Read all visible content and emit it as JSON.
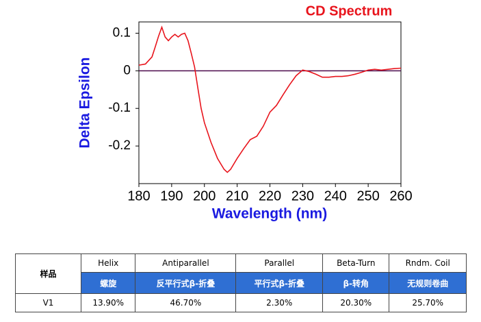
{
  "chart_data": {
    "type": "line",
    "title": "CD Spectrum",
    "x_label": "Wavelength (nm)",
    "y_label": "Delta Epsilon",
    "x": [
      180,
      182,
      184,
      185,
      186,
      187,
      188,
      189,
      190,
      191,
      192,
      193,
      194,
      195,
      196,
      197,
      198,
      199,
      200,
      202,
      204,
      206,
      207,
      208,
      210,
      212,
      214,
      216,
      218,
      220,
      222,
      224,
      226,
      228,
      230,
      232,
      234,
      236,
      238,
      240,
      242,
      244,
      246,
      248,
      250,
      252,
      254,
      256,
      258,
      260
    ],
    "values": [
      0.015,
      0.018,
      0.037,
      0.064,
      0.092,
      0.116,
      0.09,
      0.08,
      0.09,
      0.097,
      0.09,
      0.097,
      0.1,
      0.08,
      0.046,
      0.01,
      -0.046,
      -0.1,
      -0.138,
      -0.19,
      -0.233,
      -0.262,
      -0.27,
      -0.262,
      -0.233,
      -0.207,
      -0.183,
      -0.174,
      -0.147,
      -0.11,
      -0.092,
      -0.064,
      -0.037,
      -0.013,
      0.002,
      -0.002,
      -0.009,
      -0.017,
      -0.017,
      -0.015,
      -0.015,
      -0.013,
      -0.009,
      -0.004,
      0.002,
      0.004,
      0.002,
      0.004,
      0.006,
      0.007
    ],
    "color": "#e8141c",
    "zero_line_color": "#4b0a4b",
    "xlim": [
      180,
      260
    ],
    "xticks": [
      180,
      190,
      200,
      210,
      220,
      230,
      240,
      250,
      260
    ],
    "ylim": [
      -0.3,
      0.13
    ],
    "yticks": [
      0.1,
      0,
      -0.1,
      -0.2
    ]
  },
  "table": {
    "header": "样品",
    "columns": [
      {
        "en": "Helix",
        "zh": "螺旋"
      },
      {
        "en": "Antiparallel",
        "zh": "反平行式β-折叠"
      },
      {
        "en": "Parallel",
        "zh": "平行式β-折叠"
      },
      {
        "en": "Beta-Turn",
        "zh": "β-转角"
      },
      {
        "en": "Rndm. Coil",
        "zh": "无规则卷曲"
      }
    ],
    "rows": [
      [
        "V1",
        "13.90%",
        "46.70%",
        "2.30%",
        "20.30%",
        "25.70%"
      ]
    ]
  }
}
